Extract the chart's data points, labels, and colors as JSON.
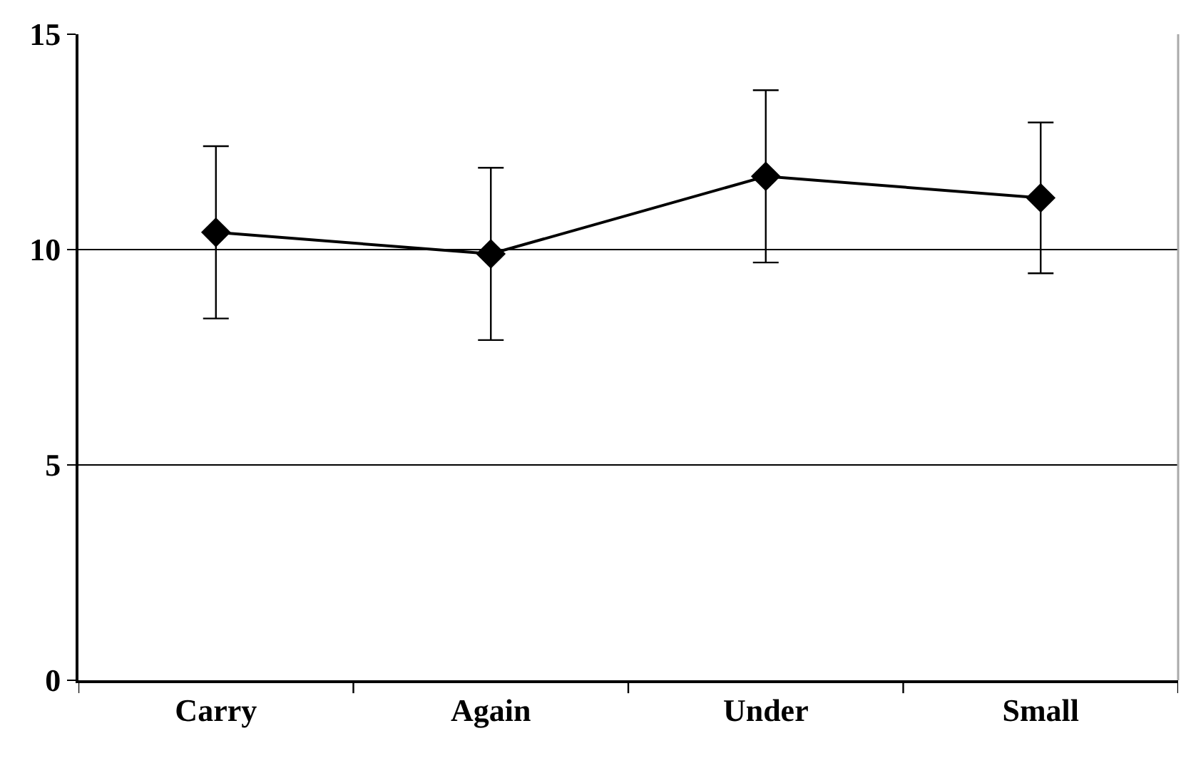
{
  "chart_data": {
    "type": "line",
    "categories": [
      "Carry",
      "Again",
      "Under",
      "Small"
    ],
    "series": [
      {
        "color": "#000000",
        "values": [
          10.4,
          9.9,
          11.7,
          11.2
        ],
        "errors": [
          2.0,
          2.0,
          2.0,
          1.75
        ]
      }
    ],
    "ylim": [
      0,
      15
    ],
    "yticks": [
      0,
      5,
      10,
      15
    ],
    "grid": "y",
    "marker": "diamond",
    "line_style": "solid"
  }
}
